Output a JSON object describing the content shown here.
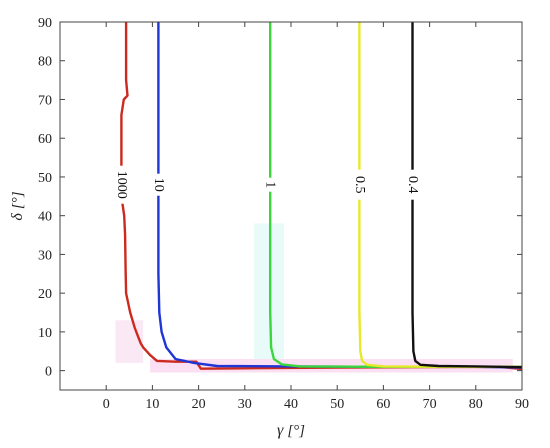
{
  "chart_data": {
    "type": "line",
    "title": "",
    "xlabel_symbol": "γ",
    "xlabel_unit": "[°]",
    "ylabel_symbol": "δ",
    "ylabel_unit": "[°]",
    "xlim": [
      -10,
      90
    ],
    "ylim": [
      -5,
      90
    ],
    "xticks": [
      "0",
      "10",
      "20",
      "30",
      "40",
      "50",
      "60",
      "70",
      "80",
      "90"
    ],
    "yticks": [
      "0",
      "10",
      "20",
      "30",
      "40",
      "50",
      "60",
      "70",
      "80",
      "90"
    ],
    "grid": false,
    "series": [
      {
        "name": "1000",
        "color": "#cc2a1e",
        "points": [
          [
            4.3,
            90
          ],
          [
            4.3,
            75
          ],
          [
            4.6,
            71
          ],
          [
            3.8,
            70
          ],
          [
            3.3,
            66
          ],
          [
            3.3,
            55
          ],
          [
            3.3,
            45
          ],
          [
            3.9,
            40
          ],
          [
            4.1,
            35
          ],
          [
            4.2,
            26
          ],
          [
            4.3,
            20
          ],
          [
            5.2,
            15
          ],
          [
            6.2,
            11
          ],
          [
            7.0,
            8.5
          ],
          [
            7.5,
            7
          ],
          [
            8.0,
            6
          ],
          [
            9.5,
            4
          ],
          [
            11,
            2.5
          ],
          [
            15,
            2.3
          ],
          [
            19.5,
            2.3
          ],
          [
            20.5,
            0.5
          ],
          [
            30,
            0.6
          ],
          [
            50,
            0.8
          ],
          [
            70,
            0.9
          ],
          [
            85,
            1.0
          ],
          [
            90,
            0.4
          ]
        ]
      },
      {
        "name": "10",
        "color": "#1f35d6",
        "points": [
          [
            11.3,
            90
          ],
          [
            11.3,
            60
          ],
          [
            11.3,
            40
          ],
          [
            11.3,
            25
          ],
          [
            11.5,
            15
          ],
          [
            12,
            10
          ],
          [
            13,
            6
          ],
          [
            15,
            3
          ],
          [
            19,
            2
          ],
          [
            24,
            1.2
          ],
          [
            40,
            1.1
          ],
          [
            60,
            1.0
          ],
          [
            80,
            1.0
          ],
          [
            90,
            0.8
          ]
        ]
      },
      {
        "name": "1",
        "color": "#3cd63c",
        "points": [
          [
            35.5,
            90
          ],
          [
            35.5,
            60
          ],
          [
            35.5,
            40
          ],
          [
            35.5,
            15
          ],
          [
            35.7,
            6
          ],
          [
            36.3,
            3
          ],
          [
            38,
            1.6
          ],
          [
            42,
            1.1
          ],
          [
            60,
            1.0
          ],
          [
            90,
            1.0
          ]
        ]
      },
      {
        "name": "0.5",
        "color": "#e8e82a",
        "points": [
          [
            54.8,
            90
          ],
          [
            54.8,
            60
          ],
          [
            54.8,
            40
          ],
          [
            54.8,
            15
          ],
          [
            55,
            5
          ],
          [
            55.4,
            2.5
          ],
          [
            56.5,
            1.5
          ],
          [
            60,
            1.1
          ],
          [
            75,
            1.0
          ],
          [
            90,
            1.0
          ]
        ]
      },
      {
        "name": "0.4",
        "color": "#111111",
        "points": [
          [
            66.3,
            90
          ],
          [
            66.3,
            60
          ],
          [
            66.3,
            40
          ],
          [
            66.3,
            15
          ],
          [
            66.5,
            5
          ],
          [
            66.9,
            2.5
          ],
          [
            68,
            1.5
          ],
          [
            72,
            1.2
          ],
          [
            80,
            1.1
          ],
          [
            90,
            0.9
          ]
        ]
      }
    ],
    "contour_labels": [
      {
        "text": "1000",
        "x": 3.3,
        "y": 48,
        "series": 0
      },
      {
        "text": "10",
        "x": 11.3,
        "y": 48,
        "series": 1
      },
      {
        "text": "1",
        "x": 35.5,
        "y": 48,
        "series": 2
      },
      {
        "text": "0.5",
        "x": 54.8,
        "y": 48,
        "series": 3
      },
      {
        "text": "0.4",
        "x": 66.3,
        "y": 48,
        "series": 4
      }
    ]
  }
}
